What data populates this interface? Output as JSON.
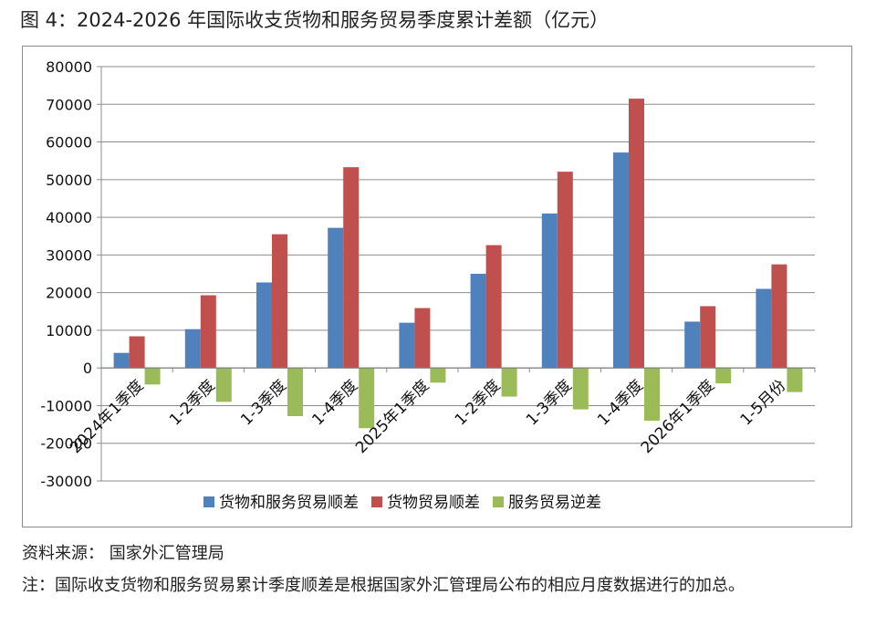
{
  "figure_title": "图 4：2024-2026 年国际收支货物和服务贸易季度累计差额（亿元）",
  "source": "资料来源：  国家外汇管理局",
  "note": "注：国际收支货物和服务贸易累计季度顺差是根据国家外汇管理局公布的相应月度数据进行的加总。",
  "colors": {
    "goods_services": "#4F81BD",
    "goods": "#C0504D",
    "services": "#9BBB59",
    "grid": "#8c8c8c",
    "frame": "#8a8a8a"
  },
  "chart_data": {
    "type": "bar",
    "title": "",
    "xlabel": "",
    "ylabel": "",
    "ylim": [
      -30000,
      80000
    ],
    "y_ticks": [
      -30000,
      -20000,
      -10000,
      0,
      10000,
      20000,
      30000,
      40000,
      50000,
      60000,
      70000,
      80000
    ],
    "y_tick_labels": [
      "-30000",
      "-20000",
      "-10000",
      "0",
      "10000",
      "20000",
      "30000",
      "40000",
      "50000",
      "60000",
      "70000",
      "80000"
    ],
    "grid": true,
    "legend_position": "bottom",
    "categories": [
      "2024年1季度",
      "1-2季度",
      "1-3季度",
      "1-4季度",
      "2025年1季度",
      "1-2季度",
      "1-3季度",
      "1-4季度",
      "2026年1季度",
      "1-5月份"
    ],
    "series": [
      {
        "name": "货物和服务贸易顺差",
        "color": "#4F81BD",
        "values": [
          4000,
          10300,
          22700,
          37200,
          12000,
          25000,
          41000,
          57200,
          12300,
          21000
        ]
      },
      {
        "name": "货物贸易顺差",
        "color": "#C0504D",
        "values": [
          8400,
          19300,
          35500,
          53300,
          15900,
          32600,
          52100,
          71500,
          16400,
          27500
        ]
      },
      {
        "name": "服务贸易逆差",
        "color": "#9BBB59",
        "values": [
          -4400,
          -9000,
          -12800,
          -16000,
          -3900,
          -7600,
          -11000,
          -14000,
          -4100,
          -6400
        ]
      }
    ]
  }
}
